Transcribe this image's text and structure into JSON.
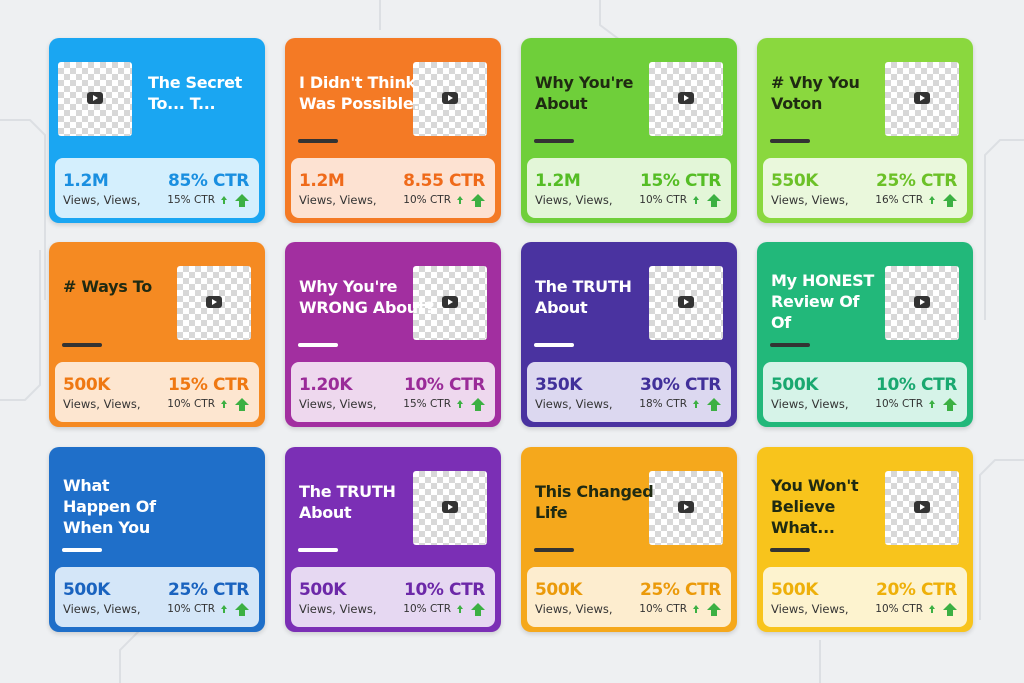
{
  "cards": [
    {
      "title": [
        "The Secret",
        "To...    T..."
      ],
      "views": "1.2M",
      "ctr": "85% CTR",
      "views_label": "Views, Views,",
      "small_ctr": "15% CTR"
    },
    {
      "title": [
        "I Didn't Think",
        "Was Possible."
      ],
      "views": "1.2M",
      "ctr": "8.55 CTR",
      "views_label": "Views, Views,",
      "small_ctr": "10% CTR"
    },
    {
      "title": [
        "Why You're",
        "About"
      ],
      "views": "1.2M",
      "ctr": "15% CTR",
      "views_label": "Views, Views,",
      "small_ctr": "10% CTR"
    },
    {
      "title": [
        "# Vhy You",
        "Voton"
      ],
      "views": "550K",
      "ctr": "25% CTR",
      "views_label": "Views, Views,",
      "small_ctr": "16% CTR"
    },
    {
      "title": [
        "# Ways To"
      ],
      "views": "500K",
      "ctr": "15% CTR",
      "views_label": "Views, Views,",
      "small_ctr": "10% CTR"
    },
    {
      "title": [
        "Why You're",
        "WRONG About?"
      ],
      "views": "1.20K",
      "ctr": "10% CTR",
      "views_label": "Views, Views,",
      "small_ctr": "15% CTR"
    },
    {
      "title": [
        "The TRUTH",
        "About"
      ],
      "views": "350K",
      "ctr": "30% CTR",
      "views_label": "Views, Views,",
      "small_ctr": "18% CTR"
    },
    {
      "title": [
        "My HONEST",
        "Review Of",
        "Of"
      ],
      "views": "500K",
      "ctr": "10% CTR",
      "views_label": "Views, Views,",
      "small_ctr": "10% CTR"
    },
    {
      "title": [
        "What",
        "Happen Of",
        "When You"
      ],
      "views": "500K",
      "ctr": "25% CTR",
      "views_label": "Views, Views,",
      "small_ctr": "10% CTR"
    },
    {
      "title": [
        "The TRUTH",
        "About"
      ],
      "views": "500K",
      "ctr": "10% CTR",
      "views_label": "Views, Views,",
      "small_ctr": "10% CTR"
    },
    {
      "title": [
        "This Changed",
        "Life"
      ],
      "views": "500K",
      "ctr": "25% CTR",
      "views_label": "Views, Views,",
      "small_ctr": "10% CTR"
    },
    {
      "title": [
        "You Won't",
        "Believe",
        "What..."
      ],
      "views": "500K",
      "ctr": "20% CTR",
      "views_label": "Views, Views,",
      "small_ctr": "10% CTR"
    }
  ]
}
